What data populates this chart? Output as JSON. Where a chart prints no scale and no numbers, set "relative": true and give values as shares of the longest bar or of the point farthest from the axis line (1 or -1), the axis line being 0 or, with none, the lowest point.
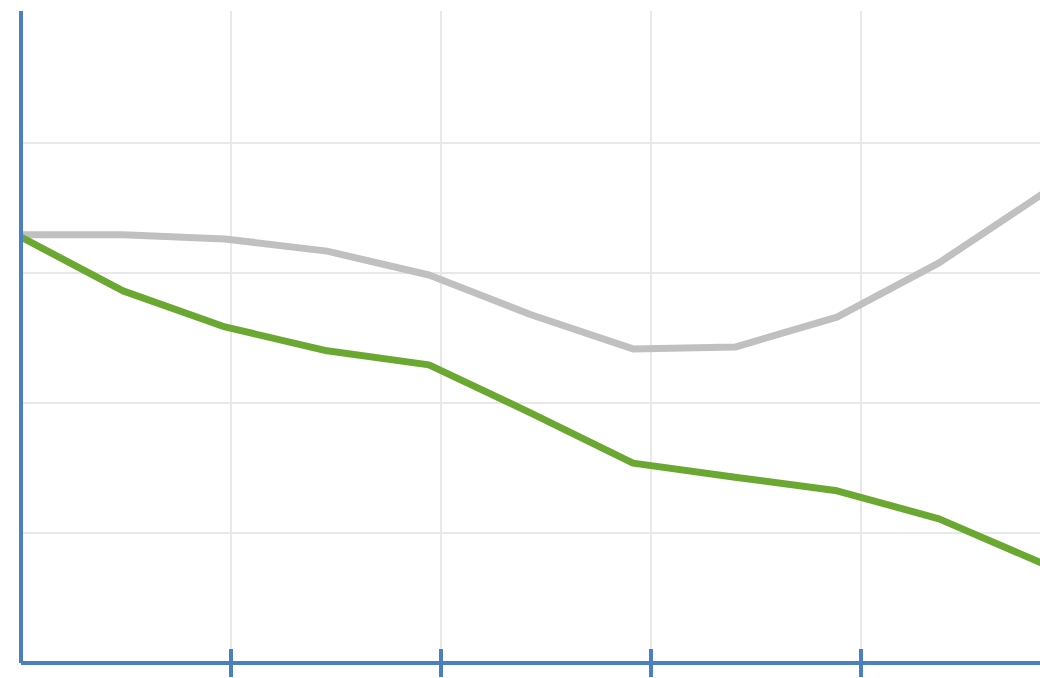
{
  "chart_data": {
    "type": "line",
    "relative": true,
    "grid": true,
    "tick_labels": false,
    "line_style": "solid",
    "marker": "none",
    "categories": [
      null,
      null,
      null,
      null,
      null,
      null,
      null,
      null,
      null,
      null,
      null
    ],
    "series": [
      {
        "color": "#c0c0c0",
        "values": [
          0.915,
          0.915,
          0.906,
          0.88,
          0.829,
          0.744,
          0.671,
          0.675,
          0.739,
          0.855,
          1
        ]
      },
      {
        "color": "#6aa832",
        "values": [
          0.91,
          0.795,
          0.718,
          0.667,
          0.637,
          0.534,
          0.427,
          0.397,
          0.368,
          0.308,
          0.214
        ]
      }
    ]
  }
}
